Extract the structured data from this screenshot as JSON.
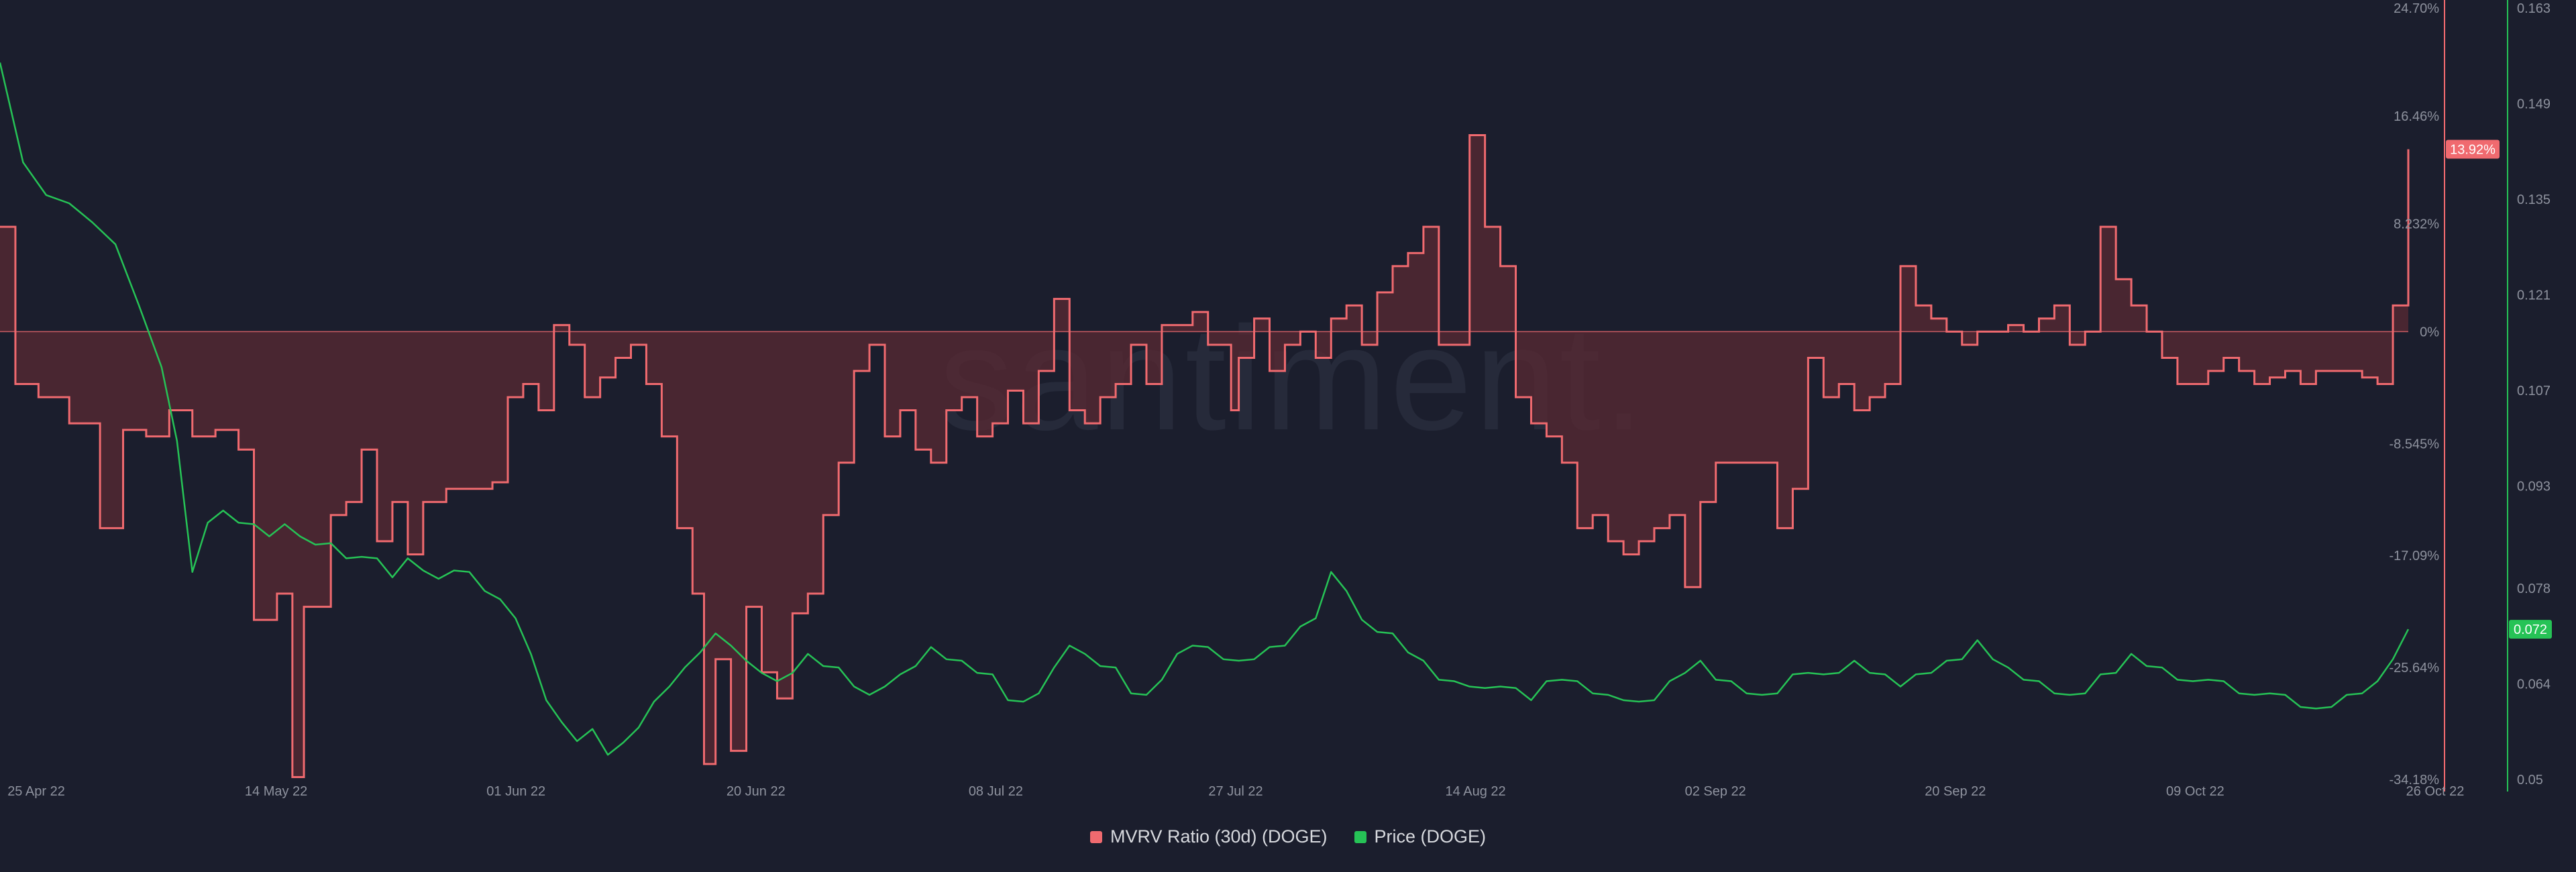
{
  "colors": {
    "background": "#1b1e2d",
    "mvrv": "#f06a6f",
    "mvrv_fill": "#5a2a33",
    "price": "#26c356",
    "grid": "#262a3a",
    "axis_text": "#8e929e",
    "legend_text": "#d7d9de"
  },
  "watermark": "santiment.",
  "legend": [
    {
      "label": "MVRV Ratio (30d) (DOGE)",
      "color": "#f06a6f"
    },
    {
      "label": "Price (DOGE)",
      "color": "#26c356"
    }
  ],
  "badges": {
    "mvrv_current": "13.92%",
    "price_current": "0.072"
  },
  "chart_data": {
    "type": "line",
    "x_tick_labels": [
      "25 Apr 22",
      "14 May 22",
      "01 Jun 22",
      "20 Jun 22",
      "08 Jul 22",
      "27 Jul 22",
      "14 Aug 22",
      "02 Sep 22",
      "20 Sep 22",
      "09 Oct 22",
      "26 Oct 22"
    ],
    "x_range": [
      "25 Apr 22",
      "26 Oct 22"
    ],
    "left_axis": {
      "series": "MVRV Ratio (30d) (DOGE)",
      "tick_labels": [
        "24.70%",
        "16.46%",
        "8.232%",
        "0%",
        "-8.545%",
        "-17.09%",
        "-25.64%",
        "-34.18%"
      ],
      "range": [
        -34.18,
        24.7
      ],
      "zero_line": 0
    },
    "right_axis": {
      "series": "Price (DOGE)",
      "tick_labels": [
        "0.163",
        "0.149",
        "0.135",
        "0.121",
        "0.107",
        "0.093",
        "0.078",
        "0.064",
        "0.05"
      ],
      "range": [
        0.05,
        0.163
      ]
    },
    "series": [
      {
        "name": "MVRV Ratio (30d) (DOGE)",
        "axis": "left",
        "style": "step-area",
        "values": [
          [
            0,
            8
          ],
          [
            2,
            -4
          ],
          [
            5,
            -5
          ],
          [
            9,
            -7
          ],
          [
            13,
            -15
          ],
          [
            16,
            -7.5
          ],
          [
            19,
            -8
          ],
          [
            22,
            -6
          ],
          [
            25,
            -8
          ],
          [
            28,
            -7.5
          ],
          [
            31,
            -9
          ],
          [
            33,
            -22
          ],
          [
            36,
            -20
          ],
          [
            38,
            -34
          ],
          [
            39.5,
            -21
          ],
          [
            41,
            -21
          ],
          [
            43,
            -14
          ],
          [
            45,
            -13
          ],
          [
            47,
            -9
          ],
          [
            49,
            -16
          ],
          [
            51,
            -13
          ],
          [
            53,
            -17
          ],
          [
            55,
            -13
          ],
          [
            58,
            -12
          ],
          [
            61,
            -12
          ],
          [
            64,
            -11.5
          ],
          [
            66,
            -5
          ],
          [
            68,
            -4
          ],
          [
            70,
            -6
          ],
          [
            72,
            0.5
          ],
          [
            74,
            -1
          ],
          [
            76,
            -5
          ],
          [
            78,
            -3.5
          ],
          [
            80,
            -2
          ],
          [
            82,
            -1
          ],
          [
            84,
            -4
          ],
          [
            86,
            -8
          ],
          [
            88,
            -15
          ],
          [
            90,
            -20
          ],
          [
            91.5,
            -33
          ],
          [
            93,
            -25
          ],
          [
            95,
            -32
          ],
          [
            97,
            -21
          ],
          [
            99,
            -26
          ],
          [
            101,
            -28
          ],
          [
            103,
            -21.5
          ],
          [
            105,
            -20
          ],
          [
            107,
            -14
          ],
          [
            109,
            -10
          ],
          [
            111,
            -3
          ],
          [
            113,
            -1
          ],
          [
            115,
            -8
          ],
          [
            117,
            -6
          ],
          [
            119,
            -9
          ],
          [
            121,
            -10
          ],
          [
            123,
            -6
          ],
          [
            125,
            -5
          ],
          [
            127,
            -8
          ],
          [
            129,
            -7
          ],
          [
            131,
            -4.5
          ],
          [
            133,
            -7
          ],
          [
            135,
            -3
          ],
          [
            137,
            2.5
          ],
          [
            139,
            -6
          ],
          [
            141,
            -7
          ],
          [
            143,
            -5
          ],
          [
            145,
            -4
          ],
          [
            147,
            -1
          ],
          [
            149,
            -4
          ],
          [
            151,
            0.5
          ],
          [
            153,
            0.5
          ],
          [
            155,
            1.5
          ],
          [
            157,
            -1
          ],
          [
            159,
            -1
          ],
          [
            160,
            -6
          ],
          [
            161,
            -2
          ],
          [
            163,
            1
          ],
          [
            165,
            -3
          ],
          [
            167,
            -1
          ],
          [
            169,
            0
          ],
          [
            171,
            -2
          ],
          [
            173,
            1
          ],
          [
            175,
            2
          ],
          [
            177,
            -1
          ],
          [
            179,
            3
          ],
          [
            181,
            5
          ],
          [
            183,
            6
          ],
          [
            185,
            8
          ],
          [
            187,
            -1
          ],
          [
            189,
            -1
          ],
          [
            191,
            15
          ],
          [
            193,
            8
          ],
          [
            195,
            5
          ],
          [
            197,
            -5
          ],
          [
            199,
            -7
          ],
          [
            201,
            -8
          ],
          [
            203,
            -10
          ],
          [
            205,
            -15
          ],
          [
            207,
            -14
          ],
          [
            209,
            -16
          ],
          [
            211,
            -17
          ],
          [
            213,
            -16
          ],
          [
            215,
            -15
          ],
          [
            217,
            -14
          ],
          [
            219,
            -19.5
          ],
          [
            221,
            -13
          ],
          [
            223,
            -10
          ],
          [
            225,
            -10
          ],
          [
            227,
            -10
          ],
          [
            229,
            -10
          ],
          [
            231,
            -15
          ],
          [
            233,
            -12
          ],
          [
            235,
            -2
          ],
          [
            237,
            -5
          ],
          [
            239,
            -4
          ],
          [
            241,
            -6
          ],
          [
            243,
            -5
          ],
          [
            245,
            -4
          ],
          [
            247,
            5
          ],
          [
            249,
            2
          ],
          [
            251,
            1
          ],
          [
            253,
            0
          ],
          [
            255,
            -1
          ],
          [
            257,
            0
          ],
          [
            259,
            0
          ],
          [
            261,
            0.5
          ],
          [
            263,
            0
          ],
          [
            265,
            1
          ],
          [
            267,
            2
          ],
          [
            269,
            -1
          ],
          [
            271,
            0
          ],
          [
            273,
            8
          ],
          [
            275,
            4
          ],
          [
            277,
            2
          ],
          [
            279,
            0
          ],
          [
            281,
            -2
          ],
          [
            283,
            -4
          ],
          [
            285,
            -4
          ],
          [
            287,
            -3
          ],
          [
            289,
            -2
          ],
          [
            291,
            -3
          ],
          [
            293,
            -4
          ],
          [
            295,
            -3.5
          ],
          [
            297,
            -3
          ],
          [
            299,
            -4
          ],
          [
            301,
            -3
          ],
          [
            303,
            -3
          ],
          [
            305,
            -3
          ],
          [
            307,
            -3.5
          ],
          [
            309,
            -4
          ],
          [
            311,
            2
          ],
          [
            313,
            13.92
          ]
        ]
      },
      {
        "name": "Price (DOGE)",
        "axis": "right",
        "style": "line",
        "values": [
          [
            0,
            0.155
          ],
          [
            3,
            0.14
          ],
          [
            6,
            0.136
          ],
          [
            9,
            0.134
          ],
          [
            12,
            0.132
          ],
          [
            15,
            0.128
          ],
          [
            18,
            0.12
          ],
          [
            21,
            0.11
          ],
          [
            23,
            0.1
          ],
          [
            25,
            0.08
          ],
          [
            27,
            0.088
          ],
          [
            29,
            0.089
          ],
          [
            31,
            0.088
          ],
          [
            33,
            0.087
          ],
          [
            35,
            0.086
          ],
          [
            37,
            0.087
          ],
          [
            39,
            0.086
          ],
          [
            41,
            0.084
          ],
          [
            43,
            0.085
          ],
          [
            45,
            0.082
          ],
          [
            47,
            0.083
          ],
          [
            49,
            0.082
          ],
          [
            51,
            0.08
          ],
          [
            53,
            0.082
          ],
          [
            55,
            0.081
          ],
          [
            57,
            0.079
          ],
          [
            59,
            0.081
          ],
          [
            61,
            0.08
          ],
          [
            63,
            0.078
          ],
          [
            65,
            0.076
          ],
          [
            67,
            0.074
          ],
          [
            69,
            0.068
          ],
          [
            71,
            0.062
          ],
          [
            73,
            0.058
          ],
          [
            75,
            0.056
          ],
          [
            77,
            0.057
          ],
          [
            79,
            0.054
          ],
          [
            81,
            0.055
          ],
          [
            83,
            0.058
          ],
          [
            85,
            0.061
          ],
          [
            87,
            0.064
          ],
          [
            89,
            0.066
          ],
          [
            91,
            0.069
          ],
          [
            93,
            0.071
          ],
          [
            95,
            0.07
          ],
          [
            97,
            0.067
          ],
          [
            99,
            0.066
          ],
          [
            101,
            0.064
          ],
          [
            103,
            0.066
          ],
          [
            105,
            0.068
          ],
          [
            107,
            0.067
          ],
          [
            109,
            0.066
          ],
          [
            111,
            0.064
          ],
          [
            113,
            0.062
          ],
          [
            115,
            0.064
          ],
          [
            117,
            0.065
          ],
          [
            119,
            0.067
          ],
          [
            121,
            0.069
          ],
          [
            123,
            0.068
          ],
          [
            125,
            0.067
          ],
          [
            127,
            0.066
          ],
          [
            129,
            0.065
          ],
          [
            131,
            0.062
          ],
          [
            133,
            0.061
          ],
          [
            135,
            0.063
          ],
          [
            137,
            0.066
          ],
          [
            139,
            0.07
          ],
          [
            141,
            0.068
          ],
          [
            143,
            0.067
          ],
          [
            145,
            0.066
          ],
          [
            147,
            0.063
          ],
          [
            149,
            0.062
          ],
          [
            151,
            0.065
          ],
          [
            153,
            0.068
          ],
          [
            155,
            0.07
          ],
          [
            157,
            0.069
          ],
          [
            159,
            0.068
          ],
          [
            161,
            0.067
          ],
          [
            163,
            0.068
          ],
          [
            165,
            0.069
          ],
          [
            167,
            0.07
          ],
          [
            169,
            0.072
          ],
          [
            171,
            0.074
          ],
          [
            173,
            0.08
          ],
          [
            175,
            0.078
          ],
          [
            177,
            0.073
          ],
          [
            179,
            0.072
          ],
          [
            181,
            0.071
          ],
          [
            183,
            0.069
          ],
          [
            185,
            0.067
          ],
          [
            187,
            0.065
          ],
          [
            189,
            0.064
          ],
          [
            191,
            0.064
          ],
          [
            193,
            0.063
          ],
          [
            195,
            0.064
          ],
          [
            197,
            0.063
          ],
          [
            199,
            0.062
          ],
          [
            201,
            0.064
          ],
          [
            203,
            0.065
          ],
          [
            205,
            0.064
          ],
          [
            207,
            0.063
          ],
          [
            209,
            0.062
          ],
          [
            211,
            0.062
          ],
          [
            213,
            0.061
          ],
          [
            215,
            0.062
          ],
          [
            217,
            0.064
          ],
          [
            219,
            0.066
          ],
          [
            221,
            0.067
          ],
          [
            223,
            0.065
          ],
          [
            225,
            0.064
          ],
          [
            227,
            0.063
          ],
          [
            229,
            0.062
          ],
          [
            231,
            0.063
          ],
          [
            233,
            0.065
          ],
          [
            235,
            0.066
          ],
          [
            237,
            0.065
          ],
          [
            239,
            0.066
          ],
          [
            241,
            0.067
          ],
          [
            243,
            0.066
          ],
          [
            245,
            0.065
          ],
          [
            247,
            0.064
          ],
          [
            249,
            0.065
          ],
          [
            251,
            0.066
          ],
          [
            253,
            0.067
          ],
          [
            255,
            0.068
          ],
          [
            257,
            0.07
          ],
          [
            259,
            0.068
          ],
          [
            261,
            0.066
          ],
          [
            263,
            0.065
          ],
          [
            265,
            0.064
          ],
          [
            267,
            0.063
          ],
          [
            269,
            0.062
          ],
          [
            271,
            0.063
          ],
          [
            273,
            0.065
          ],
          [
            275,
            0.066
          ],
          [
            277,
            0.068
          ],
          [
            279,
            0.067
          ],
          [
            281,
            0.066
          ],
          [
            283,
            0.065
          ],
          [
            285,
            0.064
          ],
          [
            287,
            0.065
          ],
          [
            289,
            0.064
          ],
          [
            291,
            0.063
          ],
          [
            293,
            0.062
          ],
          [
            295,
            0.063
          ],
          [
            297,
            0.062
          ],
          [
            299,
            0.061
          ],
          [
            301,
            0.06
          ],
          [
            303,
            0.061
          ],
          [
            305,
            0.062
          ],
          [
            307,
            0.063
          ],
          [
            309,
            0.064
          ],
          [
            311,
            0.068
          ],
          [
            313,
            0.072
          ]
        ]
      }
    ]
  }
}
